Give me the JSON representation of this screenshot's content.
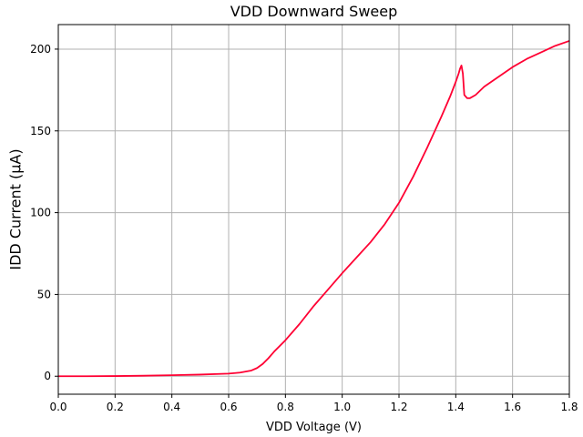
{
  "chart_data": {
    "type": "line",
    "title": "VDD Downward Sweep",
    "xlabel": "VDD Voltage (V)",
    "ylabel": "IDD Current (µA)",
    "xlim": [
      0.0,
      1.8
    ],
    "ylim": [
      -11,
      215
    ],
    "x_ticks": [
      "0.0",
      "0.2",
      "0.4",
      "0.6",
      "0.8",
      "1.0",
      "1.2",
      "1.4",
      "1.6",
      "1.8"
    ],
    "y_ticks": [
      "0",
      "50",
      "100",
      "150",
      "200"
    ],
    "grid": true,
    "line_color": "#ff0033",
    "series": [
      {
        "x": [
          0.0,
          0.1,
          0.2,
          0.3,
          0.4,
          0.5,
          0.6,
          0.64,
          0.68,
          0.7,
          0.72,
          0.74,
          0.76,
          0.8,
          0.85,
          0.9,
          0.95,
          1.0,
          1.05,
          1.1,
          1.15,
          1.2,
          1.25,
          1.3,
          1.35,
          1.38,
          1.4,
          1.41,
          1.415,
          1.42,
          1.425,
          1.43,
          1.44,
          1.45,
          1.47,
          1.5,
          1.55,
          1.6,
          1.65,
          1.7,
          1.75,
          1.8
        ],
        "y": [
          0,
          0,
          0.1,
          0.3,
          0.6,
          1.0,
          1.6,
          2.2,
          3.5,
          5.0,
          7.5,
          11.0,
          15.0,
          22.0,
          32.0,
          43.0,
          53.0,
          63.0,
          72.5,
          82.0,
          93.0,
          106.0,
          122.0,
          140.0,
          159.0,
          171.0,
          180.0,
          185.0,
          188.0,
          190.0,
          185.0,
          172.0,
          170.0,
          170.0,
          172.0,
          177.0,
          183.0,
          189.0,
          194.0,
          198.0,
          202.0,
          205.0
        ]
      }
    ]
  }
}
